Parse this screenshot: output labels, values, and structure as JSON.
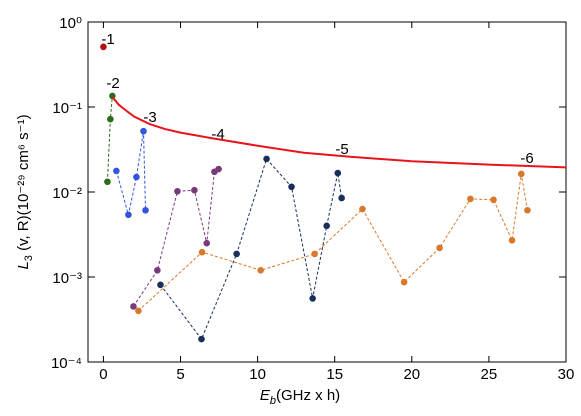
{
  "chart_data": {
    "type": "line",
    "log_y": true,
    "xlabel": {
      "symbol": "E",
      "subscript": "b",
      "text": "(GHz x h)"
    },
    "ylabel": {
      "symbol": "L",
      "subscript": "3",
      "text": " (v, R)(10⁻²⁹ cm⁶ s⁻¹)"
    },
    "xlim": [
      -1,
      30
    ],
    "xticks": [
      0,
      5,
      10,
      15,
      20,
      25,
      30
    ],
    "ylim": [
      0.0001,
      1
    ],
    "yticks": [
      {
        "value": 0.0001,
        "label": "10⁻⁴"
      },
      {
        "value": 0.001,
        "label": "10⁻³"
      },
      {
        "value": 0.01,
        "label": "10⁻²"
      },
      {
        "value": 0.1,
        "label": "10⁻¹"
      },
      {
        "value": 1,
        "label": "10⁰"
      }
    ],
    "annotations": [
      "-1",
      "-2",
      "-3",
      "-4",
      "-5",
      "-6"
    ],
    "series": [
      {
        "color": "#b01010",
        "dashed": true,
        "markers": true,
        "x": [
          0
        ],
        "values": [
          0.51
        ]
      },
      {
        "color": "#2a6e1a",
        "dashed": true,
        "markers": true,
        "x": [
          0.26,
          0.45,
          0.58
        ],
        "values": [
          0.0132,
          0.072,
          0.135
        ]
      },
      {
        "color": "#3355dd",
        "dashed": true,
        "markers": true,
        "x": [
          0.84,
          1.62,
          2.14,
          2.6,
          2.73
        ],
        "values": [
          0.0177,
          0.0054,
          0.015,
          0.052,
          0.0061
        ]
      },
      {
        "color": "#7a3a7a",
        "dashed": true,
        "markers": true,
        "x": [
          1.95,
          3.5,
          4.8,
          5.9,
          6.7,
          7.2,
          7.47
        ],
        "values": [
          0.00045,
          0.0012,
          0.0102,
          0.0105,
          0.0025,
          0.0173,
          0.0186
        ]
      },
      {
        "color": "#1a2e5a",
        "dashed": true,
        "markers": true,
        "x": [
          3.7,
          6.36,
          8.64,
          10.58,
          12.2,
          13.57,
          14.48,
          15.2,
          15.45
        ],
        "values": [
          0.00081,
          0.000186,
          0.00187,
          0.0245,
          0.0115,
          0.00056,
          0.004,
          0.0167,
          0.0085
        ]
      },
      {
        "color": "#d9782a",
        "dashed": true,
        "markers": true,
        "x": [
          2.27,
          6.4,
          10.2,
          13.7,
          16.8,
          19.5,
          21.8,
          23.8,
          25.3,
          26.5,
          27.1,
          27.5
        ],
        "values": [
          0.0004,
          0.00196,
          0.0012,
          0.00187,
          0.0063,
          0.00087,
          0.0022,
          0.0083,
          0.0081,
          0.0027,
          0.0163,
          0.0061
        ]
      },
      {
        "color": "#e8141c",
        "dashed": false,
        "markers": false,
        "x": [
          0.6,
          1,
          1.5,
          2,
          3,
          4,
          5,
          7,
          10,
          13,
          16,
          20,
          25,
          30
        ],
        "values": [
          0.13,
          0.106,
          0.09,
          0.077,
          0.063,
          0.055,
          0.05,
          0.043,
          0.035,
          0.029,
          0.026,
          0.023,
          0.021,
          0.0195
        ]
      }
    ]
  }
}
